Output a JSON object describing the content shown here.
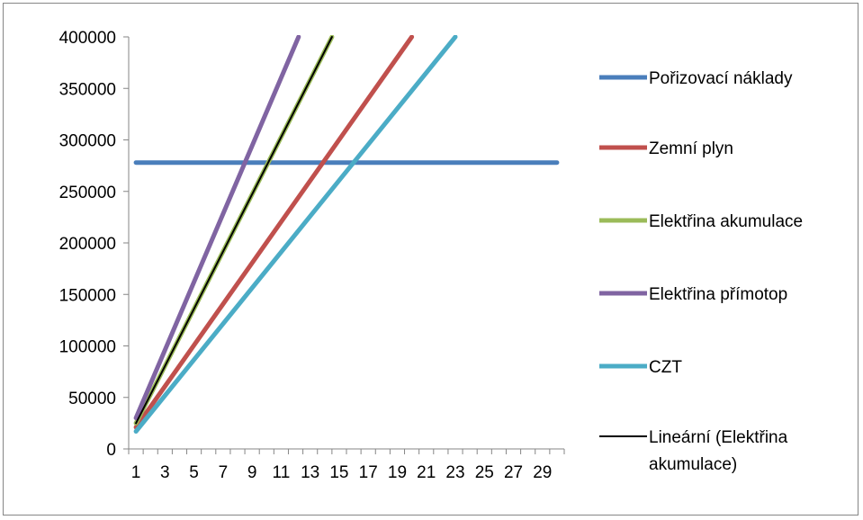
{
  "chart_data": {
    "type": "line",
    "title": "",
    "xlabel": "",
    "ylabel": "",
    "x": [
      1,
      30
    ],
    "x_ticks": [
      "1",
      "3",
      "5",
      "7",
      "9",
      "11",
      "13",
      "15",
      "17",
      "19",
      "21",
      "23",
      "25",
      "27",
      "29"
    ],
    "y_ticks": [
      "0",
      "50000",
      "100000",
      "150000",
      "200000",
      "250000",
      "300000",
      "350000",
      "400000"
    ],
    "ylim": [
      0,
      400000
    ],
    "xlim": [
      1,
      30
    ],
    "grid": false,
    "legend_position": "right",
    "series": [
      {
        "name": "Pořizovací náklady",
        "color": "#4A7EBB",
        "style": "thick",
        "points": [
          [
            1,
            278000
          ],
          [
            30,
            278000
          ]
        ]
      },
      {
        "name": "Zemní plyn",
        "color": "#C0504D",
        "style": "thick",
        "points": [
          [
            1,
            21000
          ],
          [
            20,
            400000
          ]
        ]
      },
      {
        "name": "Elektřina akumulace",
        "color": "#9BBB59",
        "style": "thick",
        "points": [
          [
            1,
            25000
          ],
          [
            14.5,
            400000
          ]
        ]
      },
      {
        "name": "Elektřina přímotop",
        "color": "#8064A2",
        "style": "thick",
        "points": [
          [
            1,
            30000
          ],
          [
            12.2,
            400000
          ]
        ]
      },
      {
        "name": "CZT",
        "color": "#4BACC6",
        "style": "thick",
        "points": [
          [
            1,
            17000
          ],
          [
            23,
            400000
          ]
        ]
      },
      {
        "name": "Lineární (Elektřina akumulace)",
        "color": "#000000",
        "style": "thin",
        "trend_of": "Elektřina akumulace"
      }
    ],
    "legend_labels": [
      [
        "Pořizovací náklady"
      ],
      [
        "Zemní plyn"
      ],
      [
        "Elektřina akumulace"
      ],
      [
        "Elektřina přímotop"
      ],
      [
        "CZT"
      ],
      [
        "Lineární (Elektřina",
        "akumulace)"
      ]
    ]
  }
}
